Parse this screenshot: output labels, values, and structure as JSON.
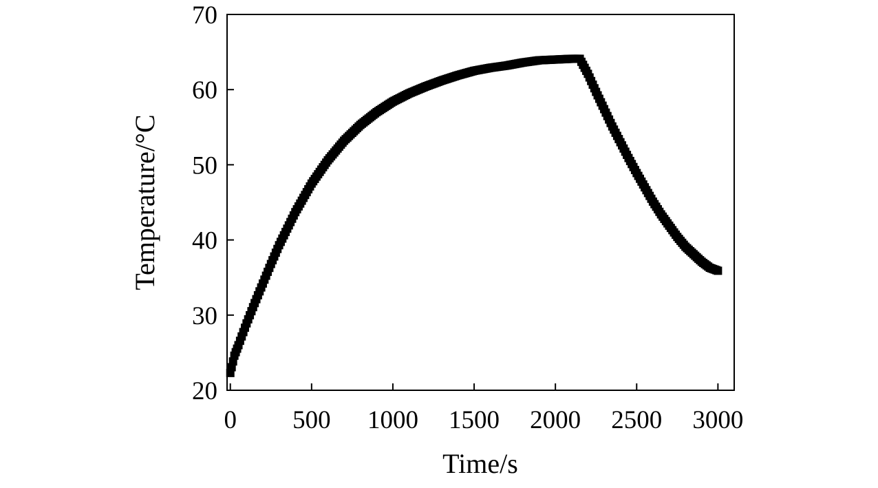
{
  "chart_data": {
    "type": "scatter",
    "title": "",
    "xlabel": "Time/s",
    "ylabel": "Temperature/°C",
    "xlim": [
      -20,
      3100
    ],
    "ylim": [
      20,
      70
    ],
    "xticks": [
      0,
      500,
      1000,
      1500,
      2000,
      2500,
      3000
    ],
    "yticks": [
      20,
      30,
      40,
      50,
      60,
      70
    ],
    "xtick_labels": [
      "0",
      "500",
      "1000",
      "1500",
      "2000",
      "2500",
      "3000"
    ],
    "ytick_labels": [
      "20",
      "30",
      "40",
      "50",
      "60",
      "70"
    ],
    "grid": false,
    "legend": "none",
    "marker": "square",
    "color": "#000000",
    "series": [
      {
        "x": [
          0,
          25,
          50,
          100,
          150,
          200,
          250,
          300,
          350,
          400,
          450,
          500,
          600,
          700,
          800,
          900,
          1000,
          1100,
          1200,
          1300,
          1400,
          1500,
          1600,
          1700,
          1800,
          1900,
          2000,
          2100,
          2150,
          2200,
          2250,
          2300,
          2350,
          2400,
          2450,
          2500,
          2550,
          2600,
          2650,
          2700,
          2750,
          2800,
          2850,
          2900,
          2950,
          3000
        ],
        "y": [
          22.3,
          24.6,
          26.0,
          28.9,
          31.6,
          34.2,
          36.8,
          39.3,
          41.5,
          43.7,
          45.6,
          47.5,
          50.6,
          53.2,
          55.3,
          57.0,
          58.4,
          59.5,
          60.4,
          61.2,
          61.9,
          62.5,
          62.9,
          63.2,
          63.6,
          63.9,
          64.0,
          64.1,
          64.1,
          62.1,
          59.7,
          57.4,
          55.1,
          53.0,
          50.9,
          48.9,
          47.0,
          45.1,
          43.4,
          41.9,
          40.4,
          39.1,
          38.1,
          37.1,
          36.3,
          35.9
        ]
      }
    ]
  }
}
